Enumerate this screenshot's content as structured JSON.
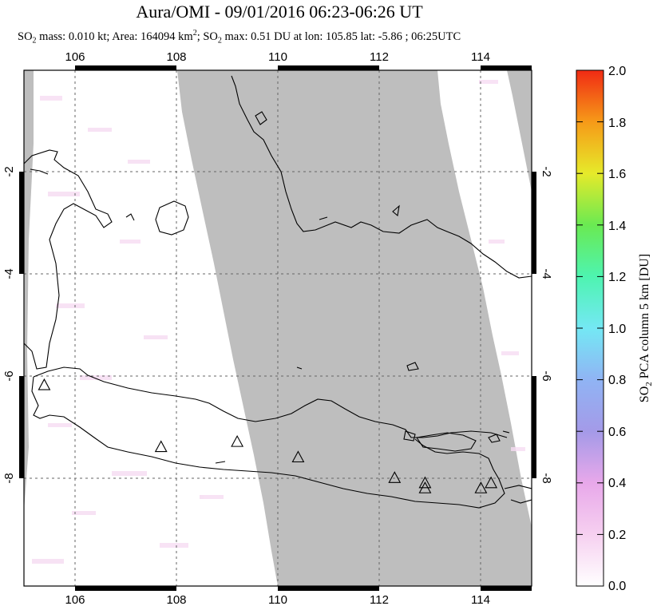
{
  "header": {
    "title": "Aura/OMI - 09/01/2016 06:23-06:26 UT",
    "subtitle": {
      "so2_1": "SO",
      "sub_1": "2",
      "mass_text": " mass: 0.010 kt; Area: 164094 km",
      "sup_1": "2",
      "so2_2": "; SO",
      "sub_2": "2",
      "max_text": " max: 0.51 DU at lon: 105.85 lat: -5.86 ; 06:25UTC"
    }
  },
  "map": {
    "lon_ticks": [
      "106",
      "108",
      "110",
      "112",
      "114"
    ],
    "lat_ticks": [
      "-2",
      "-4",
      "-6",
      "-8"
    ],
    "lon_range": [
      105,
      115
    ],
    "lat_range": [
      -10,
      0
    ],
    "gridlines": true,
    "colors": {
      "no_data": "#bebebe",
      "background": "#ffffff",
      "coast": "#000000"
    },
    "volcanoes": [
      {
        "name": "volcano-1",
        "lon": 105.4,
        "lat": -6.1
      },
      {
        "name": "volcano-2",
        "lon": 107.7,
        "lat": -7.3
      },
      {
        "name": "volcano-3",
        "lon": 109.2,
        "lat": -7.2
      },
      {
        "name": "volcano-4",
        "lon": 110.4,
        "lat": -7.5
      },
      {
        "name": "volcano-5",
        "lon": 112.3,
        "lat": -7.9
      },
      {
        "name": "volcano-6",
        "lon": 112.9,
        "lat": -8.0
      },
      {
        "name": "volcano-7",
        "lon": 112.9,
        "lat": -8.1
      },
      {
        "name": "volcano-8",
        "lon": 114.0,
        "lat": -8.1
      },
      {
        "name": "volcano-9",
        "lon": 114.2,
        "lat": -8.0
      }
    ]
  },
  "colorbar": {
    "label": "SO2 PCA column 5 km [DU]",
    "label_main": "SO",
    "label_sub": "2",
    "label_rest": " PCA column 5 km [DU]",
    "ticks": [
      "0.0",
      "0.2",
      "0.4",
      "0.6",
      "0.8",
      "1.0",
      "1.2",
      "1.4",
      "1.6",
      "1.8",
      "2.0"
    ]
  }
}
